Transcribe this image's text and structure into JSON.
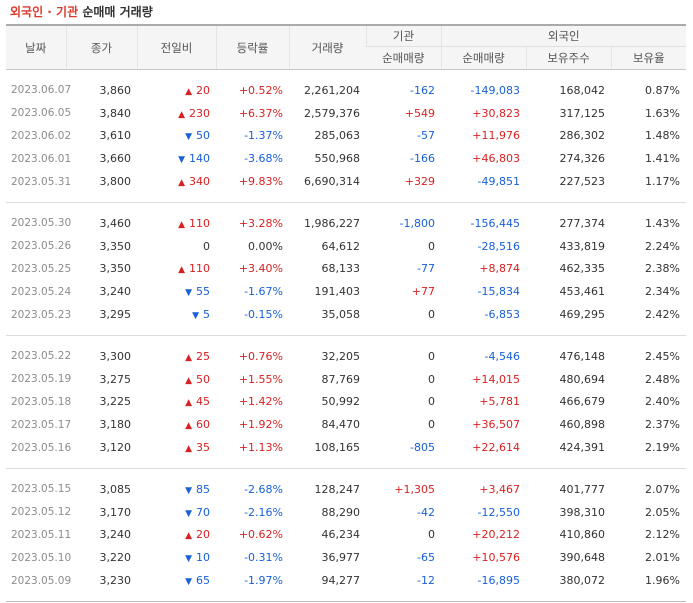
{
  "title": {
    "part1": "외국인 · 기관",
    "part2": "순매매 거래량"
  },
  "headers": {
    "date": "날짜",
    "close": "종가",
    "change": "전일비",
    "rate": "등락률",
    "volume": "거래량",
    "institution": "기관",
    "foreign": "외국인",
    "net": "순매매량",
    "net2": "순매매량",
    "holding": "보유주수",
    "ratio": "보유율"
  },
  "colors": {
    "up": "#d92121",
    "down": "#1760d8",
    "title_accent": "#dd3b2a"
  },
  "icons": {
    "up": "triangle-up",
    "down": "triangle-down"
  },
  "groups": [
    [
      {
        "date": "2023.06.07",
        "close": "3,860",
        "dir": "up",
        "change": "20",
        "rate": "+0.52%",
        "volume": "2,261,204",
        "inst": "-162",
        "frgn": "-149,083",
        "hold": "168,042",
        "ratio": "0.87%"
      },
      {
        "date": "2023.06.05",
        "close": "3,840",
        "dir": "up",
        "change": "230",
        "rate": "+6.37%",
        "volume": "2,579,376",
        "inst": "+549",
        "frgn": "+30,823",
        "hold": "317,125",
        "ratio": "1.63%"
      },
      {
        "date": "2023.06.02",
        "close": "3,610",
        "dir": "down",
        "change": "50",
        "rate": "-1.37%",
        "volume": "285,063",
        "inst": "-57",
        "frgn": "+11,976",
        "hold": "286,302",
        "ratio": "1.48%"
      },
      {
        "date": "2023.06.01",
        "close": "3,660",
        "dir": "down",
        "change": "140",
        "rate": "-3.68%",
        "volume": "550,968",
        "inst": "-166",
        "frgn": "+46,803",
        "hold": "274,326",
        "ratio": "1.41%"
      },
      {
        "date": "2023.05.31",
        "close": "3,800",
        "dir": "up",
        "change": "340",
        "rate": "+9.83%",
        "volume": "6,690,314",
        "inst": "+329",
        "frgn": "-49,851",
        "hold": "227,523",
        "ratio": "1.17%"
      }
    ],
    [
      {
        "date": "2023.05.30",
        "close": "3,460",
        "dir": "up",
        "change": "110",
        "rate": "+3.28%",
        "volume": "1,986,227",
        "inst": "-1,800",
        "frgn": "-156,445",
        "hold": "277,374",
        "ratio": "1.43%"
      },
      {
        "date": "2023.05.26",
        "close": "3,350",
        "dir": "flat",
        "change": "0",
        "rate": "0.00%",
        "volume": "64,612",
        "inst": "0",
        "frgn": "-28,516",
        "hold": "433,819",
        "ratio": "2.24%"
      },
      {
        "date": "2023.05.25",
        "close": "3,350",
        "dir": "up",
        "change": "110",
        "rate": "+3.40%",
        "volume": "68,133",
        "inst": "-77",
        "frgn": "+8,874",
        "hold": "462,335",
        "ratio": "2.38%"
      },
      {
        "date": "2023.05.24",
        "close": "3,240",
        "dir": "down",
        "change": "55",
        "rate": "-1.67%",
        "volume": "191,403",
        "inst": "+77",
        "frgn": "-15,834",
        "hold": "453,461",
        "ratio": "2.34%"
      },
      {
        "date": "2023.05.23",
        "close": "3,295",
        "dir": "down",
        "change": "5",
        "rate": "-0.15%",
        "volume": "35,058",
        "inst": "0",
        "frgn": "-6,853",
        "hold": "469,295",
        "ratio": "2.42%"
      }
    ],
    [
      {
        "date": "2023.05.22",
        "close": "3,300",
        "dir": "up",
        "change": "25",
        "rate": "+0.76%",
        "volume": "32,205",
        "inst": "0",
        "frgn": "-4,546",
        "hold": "476,148",
        "ratio": "2.45%"
      },
      {
        "date": "2023.05.19",
        "close": "3,275",
        "dir": "up",
        "change": "50",
        "rate": "+1.55%",
        "volume": "87,769",
        "inst": "0",
        "frgn": "+14,015",
        "hold": "480,694",
        "ratio": "2.48%"
      },
      {
        "date": "2023.05.18",
        "close": "3,225",
        "dir": "up",
        "change": "45",
        "rate": "+1.42%",
        "volume": "50,992",
        "inst": "0",
        "frgn": "+5,781",
        "hold": "466,679",
        "ratio": "2.40%"
      },
      {
        "date": "2023.05.17",
        "close": "3,180",
        "dir": "up",
        "change": "60",
        "rate": "+1.92%",
        "volume": "84,470",
        "inst": "0",
        "frgn": "+36,507",
        "hold": "460,898",
        "ratio": "2.37%"
      },
      {
        "date": "2023.05.16",
        "close": "3,120",
        "dir": "up",
        "change": "35",
        "rate": "+1.13%",
        "volume": "108,165",
        "inst": "-805",
        "frgn": "+22,614",
        "hold": "424,391",
        "ratio": "2.19%"
      }
    ],
    [
      {
        "date": "2023.05.15",
        "close": "3,085",
        "dir": "down",
        "change": "85",
        "rate": "-2.68%",
        "volume": "128,247",
        "inst": "+1,305",
        "frgn": "+3,467",
        "hold": "401,777",
        "ratio": "2.07%"
      },
      {
        "date": "2023.05.12",
        "close": "3,170",
        "dir": "down",
        "change": "70",
        "rate": "-2.16%",
        "volume": "88,290",
        "inst": "-42",
        "frgn": "-12,550",
        "hold": "398,310",
        "ratio": "2.05%"
      },
      {
        "date": "2023.05.11",
        "close": "3,240",
        "dir": "up",
        "change": "20",
        "rate": "+0.62%",
        "volume": "46,234",
        "inst": "0",
        "frgn": "+20,212",
        "hold": "410,860",
        "ratio": "2.12%"
      },
      {
        "date": "2023.05.10",
        "close": "3,220",
        "dir": "down",
        "change": "10",
        "rate": "-0.31%",
        "volume": "36,977",
        "inst": "-65",
        "frgn": "+10,576",
        "hold": "390,648",
        "ratio": "2.01%"
      },
      {
        "date": "2023.05.09",
        "close": "3,230",
        "dir": "down",
        "change": "65",
        "rate": "-1.97%",
        "volume": "94,277",
        "inst": "-12",
        "frgn": "-16,895",
        "hold": "380,072",
        "ratio": "1.96%"
      }
    ]
  ]
}
